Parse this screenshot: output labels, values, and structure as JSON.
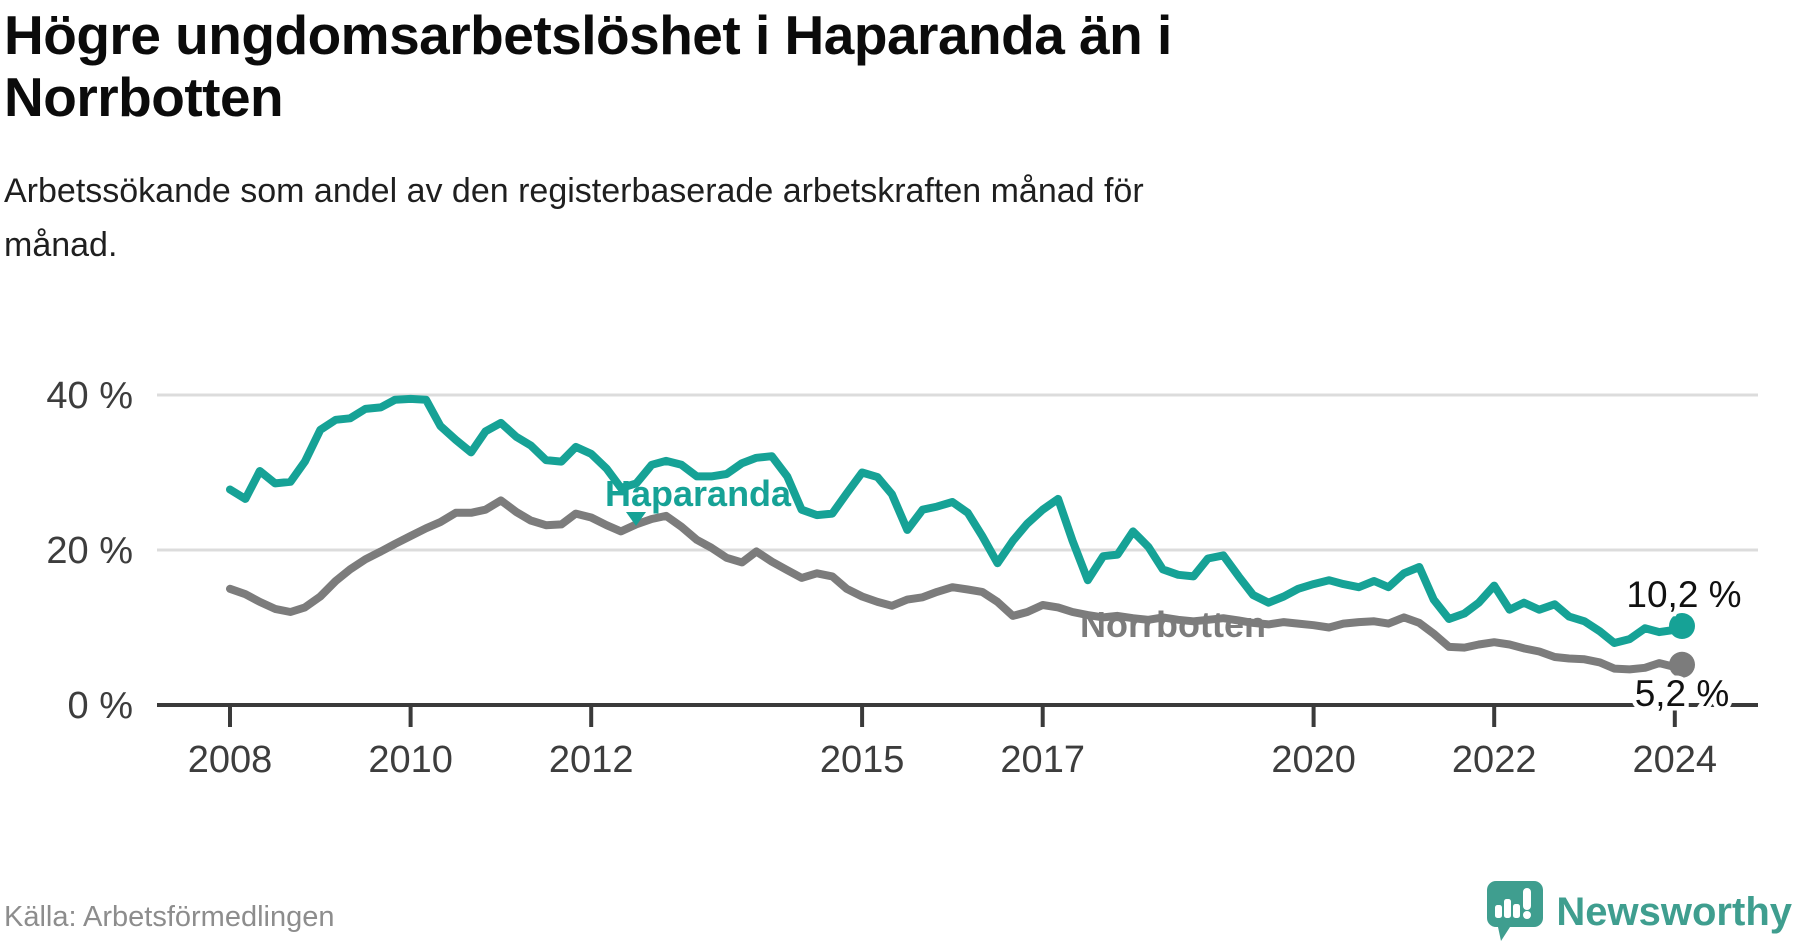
{
  "header": {
    "title_lines": [
      "Högre ungdomsarbetslöshet i Haparanda än i",
      "Norrbotten"
    ],
    "subtitle_lines": [
      "Arbetssökande som andel av den registerbaserade arbetskraften månad för",
      "månad."
    ]
  },
  "footer": {
    "source": "Källa: Arbetsförmedlingen",
    "brand_name": "Newsworthy",
    "brand_icon": "newsworthy-speech-bubble-bar-chart-icon"
  },
  "colors": {
    "haparanda_teal": "#16a296",
    "norrbotten_gray": "#7c7c7c",
    "axis_dark": "#3a3a3a",
    "gridline": "#dcdcdc",
    "brand_teal": "#3f9e8f",
    "end_label_text": "#111111"
  },
  "chart_data": {
    "type": "line",
    "title": "Högre ungdomsarbetslöshet i Haparanda än i Norrbotten",
    "subtitle": "Arbetssökande som andel av den registerbaserade arbetskraften månad för månad.",
    "unit": "%",
    "xlim": [
      2007.2,
      2024.95
    ],
    "ylim": [
      0,
      42
    ],
    "grid": "horizontal",
    "x_axis": {
      "ticks": [
        {
          "label": "2008",
          "year": 2008
        },
        {
          "label": "2010",
          "year": 2010
        },
        {
          "label": "2012",
          "year": 2012
        },
        {
          "label": "2015",
          "year": 2015
        },
        {
          "label": "2017",
          "year": 2017
        },
        {
          "label": "2020",
          "year": 2020
        },
        {
          "label": "2022",
          "year": 2022
        },
        {
          "label": "2024",
          "year": 2024
        }
      ]
    },
    "y_axis": {
      "ticks": [
        {
          "label": "0 %",
          "value": 0
        },
        {
          "label": "20 %",
          "value": 20
        },
        {
          "label": "40 %",
          "value": 40
        }
      ]
    },
    "x": [
      2008.0,
      2008.17,
      2008.33,
      2008.5,
      2008.67,
      2008.83,
      2009.0,
      2009.17,
      2009.33,
      2009.5,
      2009.67,
      2009.83,
      2010.0,
      2010.17,
      2010.33,
      2010.5,
      2010.67,
      2010.83,
      2011.0,
      2011.17,
      2011.33,
      2011.5,
      2011.67,
      2011.83,
      2012.0,
      2012.17,
      2012.33,
      2012.5,
      2012.67,
      2012.83,
      2013.0,
      2013.17,
      2013.33,
      2013.5,
      2013.67,
      2013.83,
      2014.0,
      2014.17,
      2014.33,
      2014.5,
      2014.67,
      2014.83,
      2015.0,
      2015.17,
      2015.33,
      2015.5,
      2015.67,
      2015.83,
      2016.0,
      2016.17,
      2016.33,
      2016.5,
      2016.67,
      2016.83,
      2017.0,
      2017.17,
      2017.33,
      2017.5,
      2017.67,
      2017.83,
      2018.0,
      2018.17,
      2018.33,
      2018.5,
      2018.67,
      2018.83,
      2019.0,
      2019.17,
      2019.33,
      2019.5,
      2019.67,
      2019.83,
      2020.0,
      2020.17,
      2020.33,
      2020.5,
      2020.67,
      2020.83,
      2021.0,
      2021.17,
      2021.33,
      2021.5,
      2021.67,
      2021.83,
      2022.0,
      2022.17,
      2022.33,
      2022.5,
      2022.67,
      2022.83,
      2023.0,
      2023.17,
      2023.33,
      2023.5,
      2023.67,
      2023.83,
      2024.0,
      2024.08
    ],
    "series": [
      {
        "name": "Haparanda",
        "color": "#16a296",
        "end_label": "10,2 %",
        "end_value": 10.2,
        "values": [
          27.8,
          26.6,
          30.2,
          28.6,
          28.8,
          31.4,
          35.5,
          36.8,
          37.0,
          38.2,
          38.4,
          39.4,
          39.5,
          39.4,
          36.0,
          34.2,
          32.6,
          35.3,
          36.4,
          34.6,
          33.5,
          31.6,
          31.4,
          33.3,
          32.4,
          30.5,
          28.0,
          28.6,
          31.0,
          31.5,
          31.0,
          29.5,
          29.5,
          29.8,
          31.2,
          31.9,
          32.1,
          29.5,
          25.2,
          24.5,
          24.7,
          27.3,
          30.0,
          29.4,
          27.2,
          22.6,
          25.2,
          25.6,
          26.2,
          24.8,
          21.8,
          18.3,
          21.2,
          23.4,
          25.2,
          26.6,
          21.2,
          16.1,
          19.2,
          19.4,
          22.4,
          20.4,
          17.5,
          16.8,
          16.6,
          18.9,
          19.3,
          16.6,
          14.2,
          13.2,
          14.0,
          15.0,
          15.6,
          16.1,
          15.6,
          15.2,
          16.0,
          15.2,
          17.0,
          17.8,
          13.6,
          11.1,
          11.8,
          13.2,
          15.4,
          12.3,
          13.2,
          12.3,
          13.0,
          11.4,
          10.8,
          9.5,
          8.0,
          8.5,
          9.9,
          9.4,
          9.7,
          10.2
        ]
      },
      {
        "name": "Norrbotten",
        "color": "#7c7c7c",
        "end_label": "5,2 %",
        "end_value": 5.2,
        "values": [
          15.0,
          14.3,
          13.3,
          12.4,
          12.0,
          12.6,
          14.0,
          16.0,
          17.5,
          18.8,
          19.8,
          20.8,
          21.8,
          22.8,
          23.6,
          24.8,
          24.8,
          25.2,
          26.4,
          24.9,
          23.8,
          23.2,
          23.3,
          24.7,
          24.2,
          23.2,
          22.4,
          23.3,
          24.0,
          24.4,
          23.0,
          21.3,
          20.3,
          19.0,
          18.4,
          19.8,
          18.5,
          17.4,
          16.4,
          17.0,
          16.6,
          15.0,
          14.0,
          13.3,
          12.8,
          13.6,
          13.9,
          14.6,
          15.2,
          14.9,
          14.6,
          13.3,
          11.5,
          12.0,
          12.9,
          12.6,
          12.0,
          11.6,
          11.3,
          11.5,
          11.2,
          11.0,
          11.3,
          11.0,
          10.8,
          11.0,
          11.2,
          10.9,
          10.6,
          10.4,
          10.7,
          10.5,
          10.3,
          10.0,
          10.5,
          10.7,
          10.8,
          10.5,
          11.3,
          10.6,
          9.2,
          7.5,
          7.4,
          7.8,
          8.1,
          7.8,
          7.3,
          6.9,
          6.2,
          6.0,
          5.9,
          5.5,
          4.7,
          4.6,
          4.8,
          5.4,
          4.9,
          5.2
        ]
      }
    ],
    "legend_position": "inline-labels"
  }
}
